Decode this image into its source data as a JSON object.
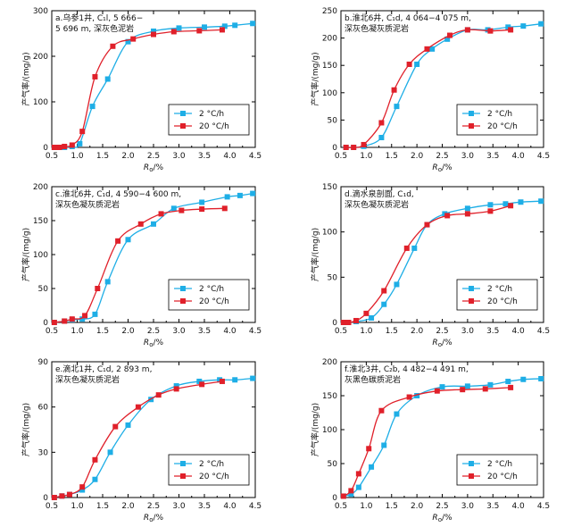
{
  "legend_labels": [
    "2 °C/h",
    "20 °C/h"
  ],
  "colors": {
    "s2": "#1eaee6",
    "s20": "#e0202a"
  },
  "chart_data": [
    {
      "type": "line",
      "title_lines": [
        "a.乌参1井, C₁l, 5 666−",
        "5 696 m, 深灰色泥岩"
      ],
      "xlabel": "Ro/%",
      "ylabel": "产气率/(mg/g)",
      "xlim": [
        0.5,
        4.5
      ],
      "ylim": [
        0,
        300
      ],
      "xticks": [
        "0.5",
        "1.0",
        "1.5",
        "2.0",
        "2.5",
        "3.0",
        "3.5",
        "4.0",
        "4.5"
      ],
      "yticks": [
        "0",
        "100",
        "200",
        "300"
      ],
      "legend_position": "bottom-right",
      "series": [
        {
          "name": "2 °C/h",
          "x": [
            0.55,
            0.65,
            0.75,
            0.9,
            1.05,
            1.3,
            1.6,
            2.0,
            2.5,
            3.0,
            3.5,
            3.9,
            4.1,
            4.45
          ],
          "y": [
            0,
            0,
            0,
            2,
            8,
            90,
            150,
            232,
            255,
            262,
            264,
            266,
            268,
            272
          ]
        },
        {
          "name": "20 °C/h",
          "x": [
            0.55,
            0.65,
            0.75,
            0.9,
            1.1,
            1.35,
            1.7,
            2.1,
            2.5,
            2.9,
            3.4,
            3.85
          ],
          "y": [
            0,
            0,
            2,
            5,
            35,
            155,
            222,
            238,
            248,
            254,
            256,
            258
          ]
        }
      ]
    },
    {
      "type": "line",
      "title_lines": [
        "b.淮北6井, C₁d, 4 064−4 075 m,",
        "深灰色凝灰质泥岩"
      ],
      "xlabel": "Ro/%",
      "ylabel": "产气率/(mg/g)",
      "xlim": [
        0.5,
        4.5
      ],
      "ylim": [
        0,
        250
      ],
      "xticks": [
        "0.5",
        "1.0",
        "1.5",
        "2.0",
        "2.5",
        "3.0",
        "3.5",
        "4.0",
        "4.5"
      ],
      "yticks": [
        "0",
        "50",
        "100",
        "150",
        "200",
        "250"
      ],
      "legend_position": "bottom-right",
      "series": [
        {
          "name": "2 °C/h",
          "x": [
            0.6,
            0.75,
            0.95,
            1.3,
            1.6,
            2.0,
            2.3,
            2.6,
            3.0,
            3.4,
            3.8,
            4.1,
            4.45
          ],
          "y": [
            0,
            0,
            2,
            18,
            75,
            152,
            180,
            198,
            215,
            215,
            220,
            222,
            226
          ]
        },
        {
          "name": "20 °C/h",
          "x": [
            0.6,
            0.75,
            0.95,
            1.3,
            1.55,
            1.85,
            2.2,
            2.65,
            3.0,
            3.45,
            3.85
          ],
          "y": [
            0,
            0,
            5,
            45,
            105,
            152,
            180,
            205,
            215,
            213,
            215
          ]
        }
      ]
    },
    {
      "type": "line",
      "title_lines": [
        "c.淮北6井, C₁d, 4 590−4 600 m,",
        "深灰色凝灰质泥岩"
      ],
      "xlabel": "Ro/%",
      "ylabel": "产气率/(mg/g)",
      "xlim": [
        0.5,
        4.5
      ],
      "ylim": [
        0,
        200
      ],
      "xticks": [
        "0.5",
        "1.0",
        "1.5",
        "2.0",
        "2.5",
        "3.0",
        "3.5",
        "4.0",
        "4.5"
      ],
      "yticks": [
        "0",
        "50",
        "100",
        "150",
        "200"
      ],
      "legend_position": "bottom-right",
      "series": [
        {
          "name": "2 °C/h",
          "x": [
            0.55,
            0.75,
            0.9,
            1.1,
            1.35,
            1.6,
            2.0,
            2.5,
            2.9,
            3.45,
            3.95,
            4.2,
            4.45
          ],
          "y": [
            0,
            2,
            4,
            5,
            12,
            60,
            122,
            145,
            168,
            177,
            185,
            187,
            190
          ]
        },
        {
          "name": "20 °C/h",
          "x": [
            0.55,
            0.75,
            0.9,
            1.15,
            1.4,
            1.8,
            2.25,
            2.65,
            3.05,
            3.45,
            3.9
          ],
          "y": [
            0,
            2,
            5,
            10,
            50,
            120,
            145,
            160,
            165,
            167,
            168
          ]
        }
      ]
    },
    {
      "type": "line",
      "title_lines": [
        "d.滴水泉剖面, C₁d,",
        "深灰色凝灰质泥岩"
      ],
      "xlabel": "Ro/%",
      "ylabel": "产气率/(mg/g)",
      "xlim": [
        0.5,
        4.5
      ],
      "ylim": [
        0,
        150
      ],
      "xticks": [
        "0.5",
        "1.0",
        "1.5",
        "2.0",
        "2.5",
        "3.0",
        "3.5",
        "4.0",
        "4.5"
      ],
      "yticks": [
        "0",
        "50",
        "100",
        "150"
      ],
      "legend_position": "bottom-right",
      "series": [
        {
          "name": "2 °C/h",
          "x": [
            0.55,
            0.65,
            0.8,
            1.1,
            1.35,
            1.6,
            1.95,
            2.2,
            2.55,
            3.0,
            3.45,
            3.75,
            4.05,
            4.45
          ],
          "y": [
            0,
            0,
            1,
            5,
            20,
            42,
            82,
            108,
            120,
            126,
            130,
            131,
            133,
            134
          ]
        },
        {
          "name": "20 °C/h",
          "x": [
            0.55,
            0.65,
            0.8,
            1.0,
            1.35,
            1.8,
            2.2,
            2.6,
            3.0,
            3.45,
            3.85
          ],
          "y": [
            0,
            0,
            2,
            10,
            35,
            82,
            108,
            118,
            120,
            123,
            129
          ]
        }
      ]
    },
    {
      "type": "line",
      "title_lines": [
        "e.滴北1井, C₁d, 2 893 m,",
        "深灰色凝灰质泥岩"
      ],
      "xlabel": "Ro/%",
      "ylabel": "产气率/(mg/g)",
      "xlim": [
        0.5,
        4.5
      ],
      "ylim": [
        0,
        90
      ],
      "xticks": [
        "0.5",
        "1.0",
        "1.5",
        "2.0",
        "2.5",
        "3.0",
        "3.5",
        "4.0",
        "4.5"
      ],
      "yticks": [
        "0",
        "30",
        "60",
        "90"
      ],
      "legend_position": "bottom-right",
      "series": [
        {
          "name": "2 °C/h",
          "x": [
            0.55,
            0.7,
            0.85,
            1.1,
            1.35,
            1.65,
            2.0,
            2.45,
            2.95,
            3.4,
            3.8,
            4.1,
            4.45
          ],
          "y": [
            0,
            1,
            2,
            5,
            12,
            30,
            48,
            65,
            74,
            77,
            78,
            78,
            79
          ]
        },
        {
          "name": "20 °C/h",
          "x": [
            0.55,
            0.7,
            0.85,
            1.1,
            1.35,
            1.75,
            2.2,
            2.6,
            2.95,
            3.45,
            3.85
          ],
          "y": [
            0,
            1,
            2,
            7,
            25,
            47,
            60,
            68,
            72,
            75,
            77
          ]
        }
      ]
    },
    {
      "type": "line",
      "title_lines": [
        "f.淮北3井, C₂b, 4 482−4 491 m,",
        "灰黑色碳质泥岩"
      ],
      "xlabel": "Ro/%",
      "ylabel": "产气率/(mg/g)",
      "xlim": [
        0.5,
        4.5
      ],
      "ylim": [
        0,
        200
      ],
      "xticks": [
        "0.5",
        "1.0",
        "1.5",
        "2.0",
        "2.5",
        "3.0",
        "3.5",
        "4.0",
        "4.5"
      ],
      "yticks": [
        "0",
        "50",
        "100",
        "150",
        "200"
      ],
      "legend_position": "bottom-right",
      "series": [
        {
          "name": "2 °C/h",
          "x": [
            0.55,
            0.7,
            0.85,
            1.1,
            1.35,
            1.6,
            2.0,
            2.5,
            3.0,
            3.45,
            3.8,
            4.1,
            4.45
          ],
          "y": [
            2,
            5,
            15,
            45,
            77,
            123,
            150,
            163,
            164,
            166,
            171,
            174,
            175
          ]
        },
        {
          "name": "20 °C/h",
          "x": [
            0.55,
            0.7,
            0.85,
            1.05,
            1.3,
            1.85,
            2.4,
            2.9,
            3.35,
            3.85
          ],
          "y": [
            2,
            10,
            35,
            72,
            128,
            148,
            157,
            159,
            160,
            162
          ]
        }
      ]
    }
  ]
}
